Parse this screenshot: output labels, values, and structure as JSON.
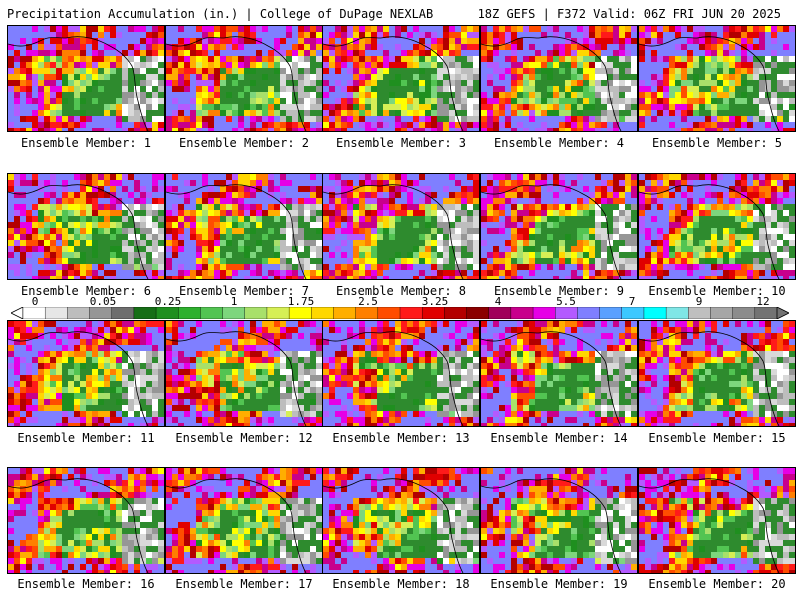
{
  "header": {
    "left": "Precipitation Accumulation (in.) | College of DuPage NEXLAB",
    "right": "18Z GEFS | F372 Valid: 06Z FRI JUN 20 2025"
  },
  "members": [
    "Ensemble Member: 1",
    "Ensemble Member: 2",
    "Ensemble Member: 3",
    "Ensemble Member: 4",
    "Ensemble Member: 5",
    "Ensemble Member: 6",
    "Ensemble Member: 7",
    "Ensemble Member: 8",
    "Ensemble Member: 9",
    "Ensemble Member: 10",
    "Ensemble Member: 11",
    "Ensemble Member: 12",
    "Ensemble Member: 13",
    "Ensemble Member: 14",
    "Ensemble Member: 15",
    "Ensemble Member: 16",
    "Ensemble Member: 17",
    "Ensemble Member: 18",
    "Ensemble Member: 19",
    "Ensemble Member: 20"
  ],
  "colorbar": {
    "labels": [
      "0",
      "0.05",
      "0.25",
      "1",
      "1.75",
      "2.5",
      "3.25",
      "4",
      "5.5",
      "7",
      "9",
      "12"
    ],
    "colors": [
      "#ffffff",
      "#e6e6e6",
      "#bdbdbd",
      "#969696",
      "#6e6e6e",
      "#166e16",
      "#1f8f1f",
      "#2eb02e",
      "#52c452",
      "#7dd67d",
      "#a8e06a",
      "#d6ef55",
      "#ffff00",
      "#ffd700",
      "#ffae00",
      "#ff7f00",
      "#ff4d00",
      "#ff1a1a",
      "#e00000",
      "#b30000",
      "#8b0000",
      "#a0005a",
      "#c8008c",
      "#e600e6",
      "#b35aff",
      "#7f7fff",
      "#5aa0ff",
      "#3cc8ff",
      "#00ffff",
      "#7fe6e6",
      "#bfbfbf",
      "#a6a6a6",
      "#8c8c8c",
      "#737373"
    ]
  }
}
